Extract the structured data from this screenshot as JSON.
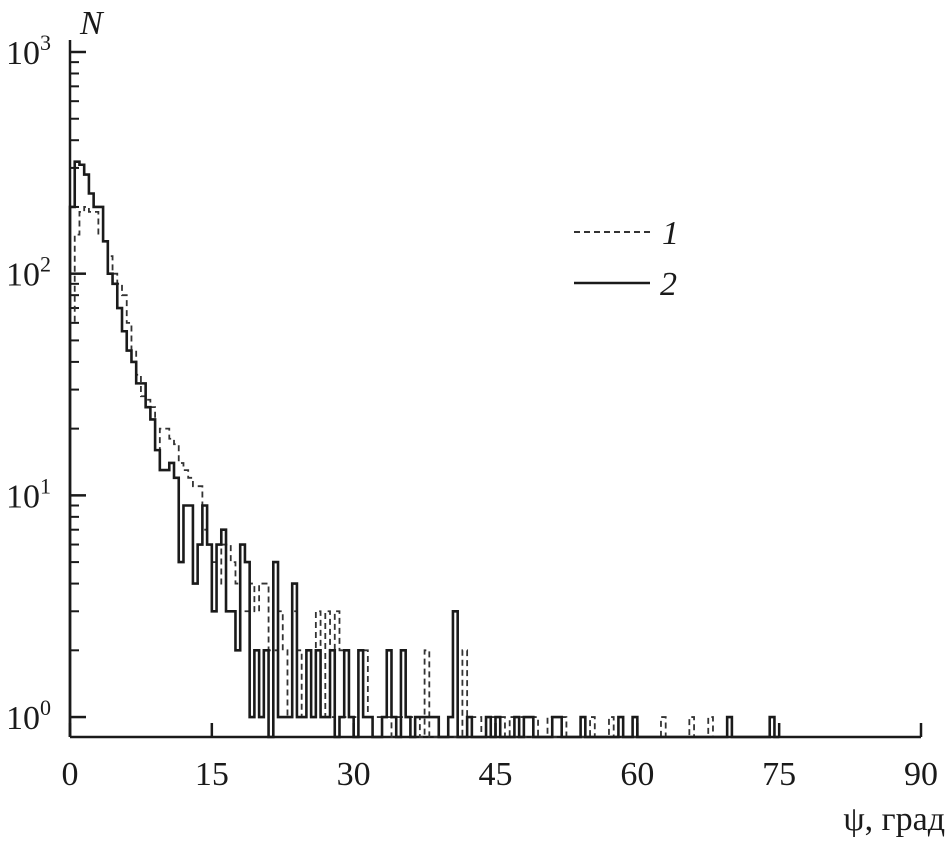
{
  "chart_data": {
    "type": "histogram-step",
    "title": "",
    "ylabel": "N",
    "xlabel": "ψ, град",
    "xlim": [
      0,
      90
    ],
    "ylim_log10": [
      -0.09,
      3
    ],
    "yscale": "log",
    "grid": false,
    "legend_position": "top-right",
    "bin_width": 0.5,
    "x_ticks": [
      "0",
      "15",
      "30",
      "45",
      "60",
      "75",
      "90"
    ],
    "x_tick_values": [
      0,
      15,
      30,
      45,
      60,
      75,
      90
    ],
    "y_ticks": [
      {
        "base": "10",
        "exp": "0",
        "value": 1
      },
      {
        "base": "10",
        "exp": "1",
        "value": 10
      },
      {
        "base": "10",
        "exp": "2",
        "value": 100
      },
      {
        "base": "10",
        "exp": "3",
        "value": 1000
      }
    ],
    "series": [
      {
        "name": "1",
        "style": "dashed",
        "color": "#333333",
        "values": [
          60,
          150,
          190,
          200,
          190,
          190,
          150,
          140,
          120,
          100,
          90,
          80,
          60,
          45,
          35,
          28,
          27,
          25,
          16,
          20,
          20,
          18,
          17,
          14,
          13,
          12,
          11,
          11,
          7,
          6,
          5,
          4,
          6,
          6,
          5,
          4,
          3,
          3,
          4,
          3,
          4,
          4,
          2,
          2,
          3,
          2,
          1,
          3,
          2,
          1,
          2,
          1,
          3,
          1,
          3,
          1,
          3,
          2,
          1,
          1,
          1,
          2,
          2,
          1,
          1,
          1,
          1,
          1,
          0,
          1,
          1,
          1,
          1,
          1,
          0,
          2,
          0,
          0,
          0,
          0,
          0,
          0,
          0,
          2,
          1,
          1,
          1,
          0,
          0,
          1,
          0,
          1,
          0,
          1,
          0,
          1,
          0,
          0,
          1,
          0,
          0,
          1,
          0,
          0,
          1,
          0,
          0,
          0,
          0,
          0,
          1,
          0,
          0,
          0,
          1,
          0,
          0,
          0,
          0,
          0,
          0,
          0,
          0,
          0,
          0,
          1,
          0,
          0,
          0,
          0,
          0,
          1,
          0,
          0,
          0,
          1,
          0,
          0,
          0,
          0
        ]
      },
      {
        "name": "2",
        "style": "solid",
        "color": "#1a1a1a",
        "values": [
          200,
          320,
          310,
          280,
          230,
          200,
          200,
          140,
          100,
          90,
          70,
          55,
          45,
          40,
          32,
          32,
          25,
          22,
          16,
          13,
          13,
          14,
          12,
          5,
          9,
          9,
          4,
          6,
          9,
          6,
          3,
          6,
          7,
          3,
          3,
          2,
          6,
          5,
          1,
          2,
          1,
          2,
          0,
          5,
          1,
          1,
          1,
          4,
          1,
          1,
          2,
          1,
          2,
          1,
          1,
          2,
          0,
          1,
          2,
          1,
          0,
          2,
          1,
          1,
          0,
          0,
          1,
          2,
          1,
          0,
          2,
          1,
          0,
          1,
          1,
          1,
          1,
          1,
          0,
          0,
          1,
          3,
          0,
          0,
          1,
          0,
          0,
          0,
          1,
          0,
          1,
          0,
          0,
          0,
          1,
          0,
          1,
          1,
          0,
          0,
          0,
          0,
          1,
          1,
          0,
          0,
          0,
          0,
          1,
          0,
          0,
          0,
          0,
          0,
          0,
          0,
          1,
          0,
          0,
          1,
          0,
          0,
          0,
          0,
          0,
          0,
          0,
          0,
          0,
          0,
          0,
          0,
          0,
          0,
          0,
          0,
          0,
          0,
          0,
          1,
          0,
          0,
          0,
          0,
          0,
          0,
          0,
          0,
          1,
          0
        ]
      }
    ]
  }
}
